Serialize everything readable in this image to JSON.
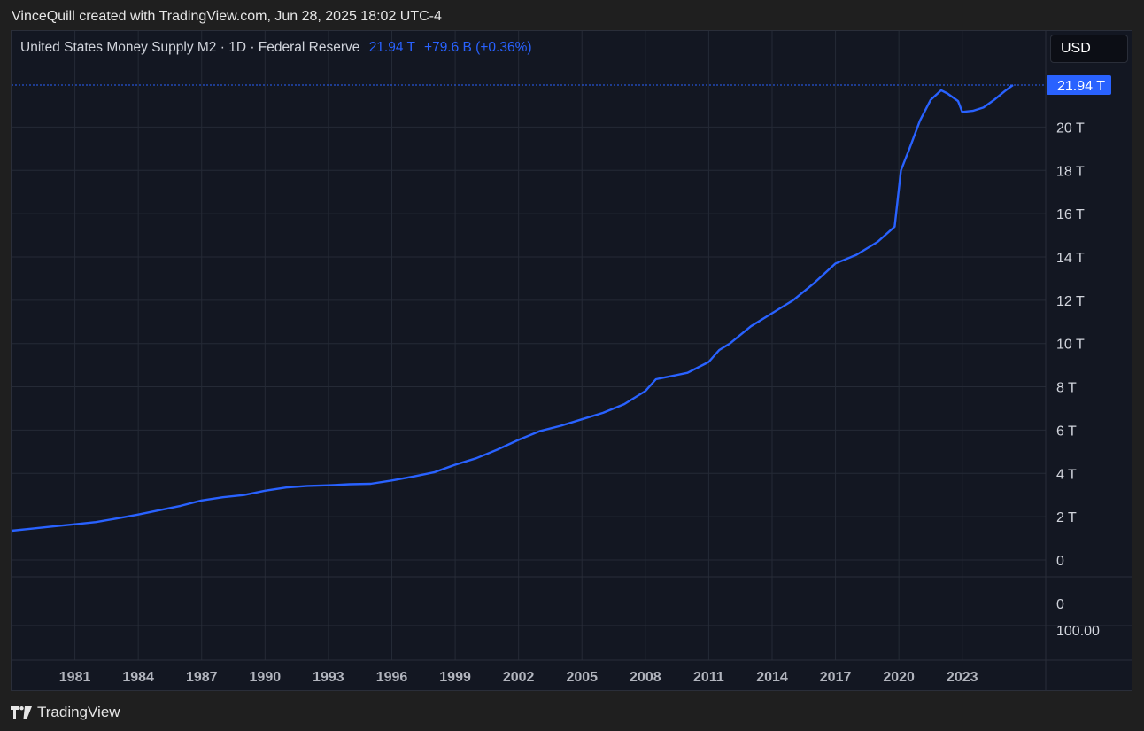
{
  "header": {
    "credit": "VinceQuill created with TradingView.com, Jun 28, 2025 18:02 UTC-4"
  },
  "legend": {
    "symbol": "United States Money Supply M2 · 1D · Federal Reserve",
    "value": "21.94 T",
    "change": "+79.6 B (+0.36%)"
  },
  "currency_button": "USD",
  "footer": {
    "brand": "TradingView"
  },
  "colors": {
    "line": "#2962ff",
    "background": "#131722",
    "grid": "#252a36"
  },
  "chart_data": {
    "type": "line",
    "series": [
      {
        "values_unit": "trillions USD",
        "x": [
          1978.0,
          1979.0,
          1980.0,
          1981.0,
          1982.0,
          1983.0,
          1984.0,
          1985.0,
          1986.0,
          1987.0,
          1988.0,
          1989.0,
          1990.0,
          1991.0,
          1992.0,
          1993.0,
          1994.0,
          1995.0,
          1996.0,
          1997.0,
          1998.0,
          1999.0,
          2000.0,
          2001.0,
          2002.0,
          2003.0,
          2004.0,
          2005.0,
          2006.0,
          2007.0,
          2008.0,
          2008.5,
          2009.0,
          2010.0,
          2011.0,
          2011.5,
          2012.0,
          2013.0,
          2014.0,
          2015.0,
          2016.0,
          2017.0,
          2018.0,
          2019.0,
          2019.8,
          2020.1,
          2020.3,
          2020.5,
          2021.0,
          2021.5,
          2022.0,
          2022.3,
          2022.8,
          2023.0,
          2023.5,
          2024.0,
          2024.5,
          2025.0,
          2025.4
        ],
        "y": [
          1.35,
          1.45,
          1.55,
          1.65,
          1.75,
          1.92,
          2.1,
          2.3,
          2.5,
          2.75,
          2.9,
          3.0,
          3.2,
          3.35,
          3.42,
          3.45,
          3.5,
          3.52,
          3.67,
          3.85,
          4.05,
          4.4,
          4.7,
          5.1,
          5.55,
          5.95,
          6.2,
          6.5,
          6.8,
          7.2,
          7.8,
          8.35,
          8.45,
          8.65,
          9.15,
          9.7,
          10.0,
          10.8,
          11.4,
          12.0,
          12.8,
          13.7,
          14.1,
          14.7,
          15.4,
          18.0,
          18.5,
          19.0,
          20.3,
          21.25,
          21.7,
          21.55,
          21.2,
          20.7,
          20.75,
          20.9,
          21.25,
          21.65,
          21.94
        ]
      }
    ],
    "x_ticks": [
      "1981",
      "1984",
      "1987",
      "1990",
      "1993",
      "1996",
      "1999",
      "2002",
      "2005",
      "2008",
      "2011",
      "2014",
      "2017",
      "2020",
      "2023"
    ],
    "x_tick_values": [
      1981,
      1984,
      1987,
      1990,
      1993,
      1996,
      1999,
      2002,
      2005,
      2008,
      2011,
      2014,
      2017,
      2020,
      2023
    ],
    "y_ticks": [
      "20 T",
      "18 T",
      "16 T",
      "14 T",
      "12 T",
      "10 T",
      "8 T",
      "6 T",
      "4 T",
      "2 T",
      "0"
    ],
    "y_tick_values": [
      20,
      18,
      16,
      14,
      12,
      10,
      8,
      6,
      4,
      2,
      0
    ],
    "xlim": [
      1978.0,
      2025.9
    ],
    "ylim": [
      0,
      22.0
    ],
    "last_value_label": "21.94 T",
    "last_value": 21.94,
    "lower_pane_labels": [
      "0",
      "100.00"
    ],
    "grid": true
  }
}
